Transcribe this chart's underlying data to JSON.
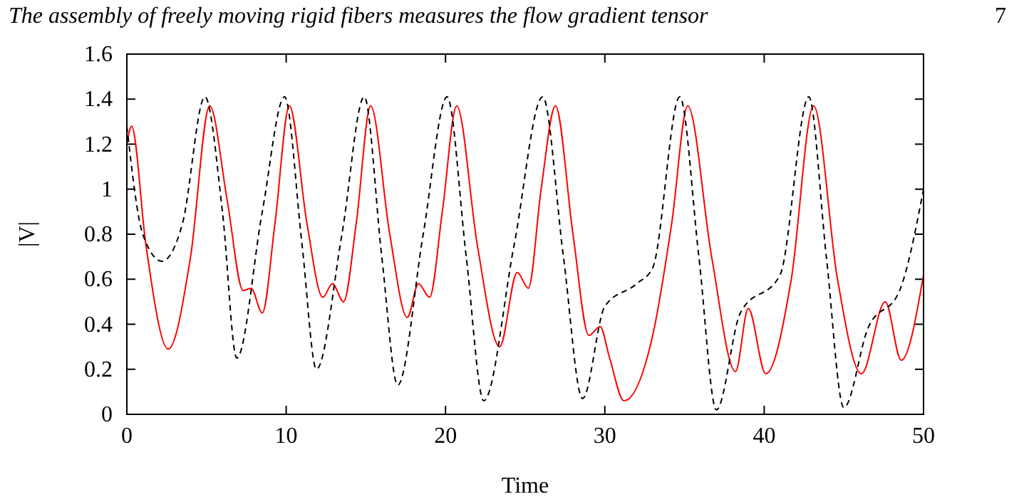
{
  "chart_data": {
    "type": "line",
    "title": "The assembly of freely moving rigid fibers measures the flow gradient tensor",
    "annotations": [
      "7"
    ],
    "xlabel": "Time",
    "ylabel": "|V|",
    "xlim": [
      0,
      50
    ],
    "ylim": [
      0,
      1.6
    ],
    "xticks": [
      0,
      10,
      20,
      30,
      40,
      50
    ],
    "yticks": [
      0,
      0.2,
      0.4,
      0.6,
      0.8,
      1,
      1.2,
      1.4,
      1.6
    ],
    "grid": false,
    "series": [
      {
        "color": "#ff0000",
        "line_style": "solid",
        "x": [
          0,
          0.3,
          1.2,
          2.6,
          4,
          5.2,
          6.3,
          7.3,
          7.8,
          8.5,
          9.3,
          10.2,
          11.3,
          12.3,
          12.9,
          13.6,
          14.4,
          15.3,
          16.5,
          17.6,
          18.3,
          19,
          19.8,
          20.7,
          22,
          23.4,
          24.5,
          25.2,
          26,
          26.9,
          28,
          29,
          29.7,
          30.3,
          31.2,
          33,
          34.2,
          35.2,
          36.7,
          38.2,
          39,
          40.1,
          41.7,
          43.1,
          44.6,
          46.1,
          47.6,
          48.6,
          50
        ],
        "values": [
          1.2,
          1.28,
          0.75,
          0.29,
          0.7,
          1.37,
          0.95,
          0.55,
          0.56,
          0.45,
          0.85,
          1.37,
          0.85,
          0.52,
          0.58,
          0.5,
          0.85,
          1.37,
          0.8,
          0.43,
          0.58,
          0.52,
          0.9,
          1.37,
          0.75,
          0.3,
          0.63,
          0.56,
          1.0,
          1.37,
          0.8,
          0.35,
          0.39,
          0.25,
          0.06,
          0.35,
          0.85,
          1.37,
          0.7,
          0.19,
          0.47,
          0.18,
          0.6,
          1.37,
          0.6,
          0.18,
          0.5,
          0.24,
          0.62
        ]
      },
      {
        "color": "#000000",
        "line_style": "dashed",
        "x": [
          0,
          1,
          2.2,
          3.5,
          4.9,
          6,
          6.9,
          8.5,
          9.9,
          11,
          11.9,
          13.5,
          14.9,
          16,
          17,
          18.6,
          20.1,
          21.3,
          22.4,
          24.3,
          26.1,
          27.4,
          28.6,
          30,
          32,
          33,
          34.7,
          35.9,
          37,
          38.5,
          41,
          42.8,
          43.9,
          45,
          46.5,
          48.5,
          50
        ],
        "values": [
          1.28,
          0.8,
          0.68,
          0.85,
          1.41,
          0.9,
          0.25,
          0.9,
          1.41,
          0.75,
          0.2,
          0.8,
          1.41,
          0.7,
          0.13,
          0.8,
          1.41,
          0.7,
          0.06,
          0.75,
          1.41,
          0.7,
          0.07,
          0.48,
          0.58,
          0.65,
          1.41,
          0.7,
          0.02,
          0.45,
          0.62,
          1.41,
          0.7,
          0.03,
          0.38,
          0.55,
          1.0
        ]
      }
    ]
  }
}
